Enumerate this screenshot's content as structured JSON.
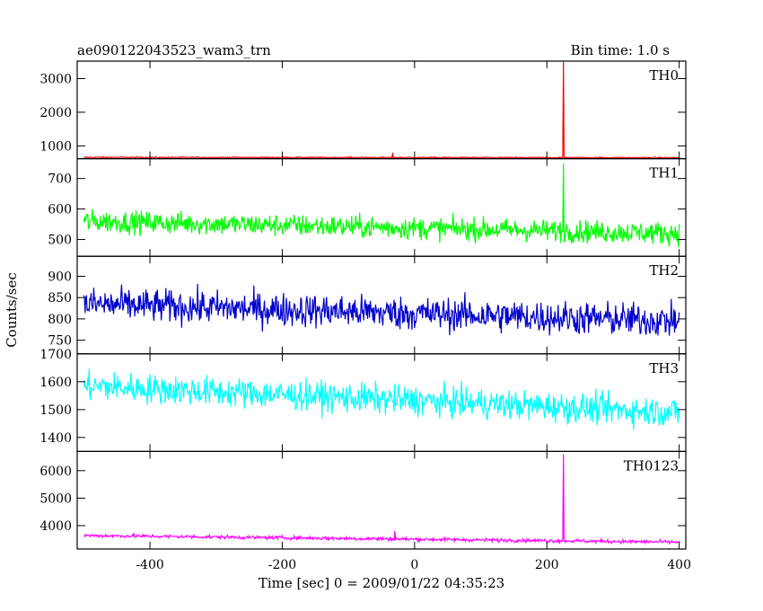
{
  "header": {
    "title": "ae090122043523_wam3_trn",
    "bin_time": "Bin time: 1.0 s"
  },
  "chart_data": {
    "type": "line",
    "xlabel": "Time [sec] 0 = 2009/01/22 04:35:23",
    "ylabel": "Counts/sec",
    "xlim": [
      -510,
      410
    ],
    "x_ticks": [
      -400,
      -200,
      0,
      200,
      400
    ],
    "x_step": 1.0,
    "grid": false,
    "panels": [
      {
        "name": "TH0",
        "color": "#ff0000",
        "ylim": [
          620,
          3520
        ],
        "y_ticks": [
          1000,
          2000,
          3000
        ],
        "baseline_start": 660,
        "baseline_end": 650,
        "noise": 12,
        "spikes": [
          {
            "x": -33,
            "y": 800
          },
          {
            "x": 225,
            "y": 3500
          }
        ]
      },
      {
        "name": "TH1",
        "color": "#00ff00",
        "ylim": [
          445,
          765
        ],
        "y_ticks": [
          500,
          600,
          700
        ],
        "baseline_start": 560,
        "baseline_end": 520,
        "noise": 26,
        "spikes": [
          {
            "x": 225,
            "y": 750
          }
        ]
      },
      {
        "name": "TH2",
        "color": "#0000cc",
        "ylim": [
          718,
          947
        ],
        "y_ticks": [
          750,
          800,
          850,
          900
        ],
        "baseline_start": 835,
        "baseline_end": 795,
        "noise": 28,
        "spikes": []
      },
      {
        "name": "TH3",
        "color": "#00ffff",
        "ylim": [
          1350,
          1700
        ],
        "y_ticks": [
          1400,
          1500,
          1600,
          1700
        ],
        "baseline_start": 1585,
        "baseline_end": 1490,
        "noise": 38,
        "spikes": []
      },
      {
        "name": "TH0123",
        "color": "#ff00ff",
        "ylim": [
          3150,
          6700
        ],
        "y_ticks": [
          4000,
          5000,
          6000
        ],
        "baseline_start": 3640,
        "baseline_end": 3400,
        "noise": 45,
        "spikes": [
          {
            "x": -30,
            "y": 3800
          },
          {
            "x": 225,
            "y": 6600
          }
        ]
      }
    ]
  }
}
